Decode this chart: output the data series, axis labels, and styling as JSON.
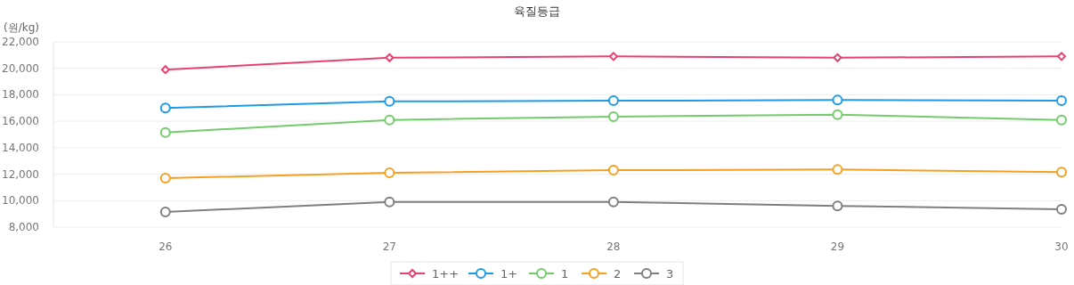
{
  "chart_data": {
    "type": "line",
    "title": "육질등급",
    "ylabel": "(원/kg)",
    "x": [
      26,
      27,
      28,
      29,
      30
    ],
    "xlim": [
      25.5,
      30
    ],
    "xticks": [
      26,
      27,
      28,
      29,
      30
    ],
    "ylim": [
      8000,
      22000
    ],
    "yticks": [
      {
        "value": 8000,
        "label": "8,000"
      },
      {
        "value": 10000,
        "label": "10,000"
      },
      {
        "value": 12000,
        "label": "12,000"
      },
      {
        "value": 14000,
        "label": "14,000"
      },
      {
        "value": 16000,
        "label": "16,000"
      },
      {
        "value": 18000,
        "label": "18,000"
      },
      {
        "value": 20000,
        "label": "20,000"
      },
      {
        "value": 22000,
        "label": "22,000"
      }
    ],
    "grid": "y",
    "legend": "bottom",
    "line_style": "solid",
    "series": [
      {
        "name": "1++",
        "color": "#e8416f",
        "marker": "diamond",
        "values": [
          19900,
          20800,
          20900,
          20800,
          20900
        ]
      },
      {
        "name": "1+",
        "color": "#1e9be8",
        "marker": "circle",
        "values": [
          17000,
          17500,
          17550,
          17600,
          17550
        ]
      },
      {
        "name": "1",
        "color": "#72cc6a",
        "marker": "circle",
        "values": [
          15150,
          16100,
          16350,
          16500,
          16100
        ]
      },
      {
        "name": "2",
        "color": "#f5a020",
        "marker": "circle",
        "values": [
          11700,
          12100,
          12300,
          12350,
          12150
        ]
      },
      {
        "name": "3",
        "color": "#7f7f7f",
        "marker": "circle",
        "values": [
          9150,
          9900,
          9900,
          9600,
          9350
        ]
      }
    ]
  }
}
